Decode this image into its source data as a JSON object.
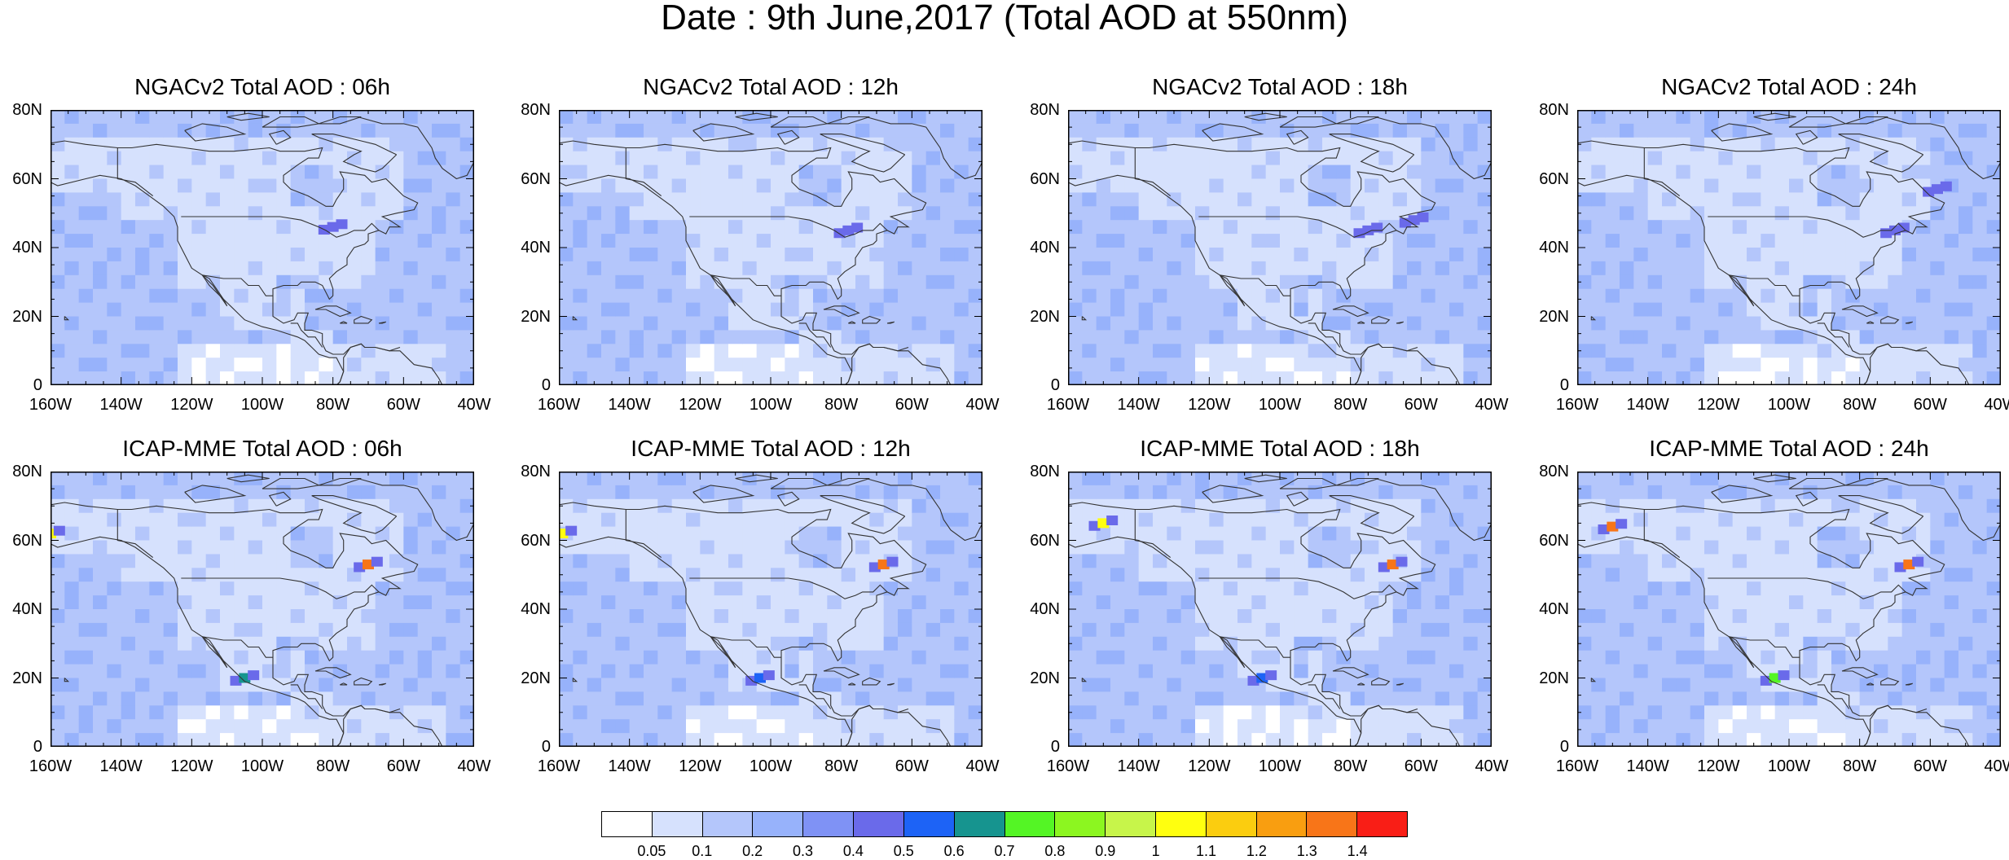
{
  "main_title": "Date : 9th June,2017 (Total AOD at 550nm)",
  "colors": {
    "background": "#ffffff",
    "coastline": "#333333",
    "frame": "#000000"
  },
  "chart_data": [
    {
      "type": "heatmap",
      "title": "NGACv2 Total AOD : 06h",
      "xlim": [
        -160,
        -40
      ],
      "ylim": [
        0,
        80
      ],
      "x_ticks": [
        "160W",
        "140W",
        "120W",
        "100W",
        "80W",
        "60W",
        "40W"
      ],
      "y_ticks": [
        "80N",
        "60N",
        "40N",
        "20N",
        "0"
      ],
      "dominant_range": "0.1-0.3",
      "hotspots": [
        {
          "lon": -80,
          "lat": 46,
          "range": "0.4-0.5"
        }
      ]
    },
    {
      "type": "heatmap",
      "title": "NGACv2 Total AOD : 12h",
      "xlim": [
        -160,
        -40
      ],
      "ylim": [
        0,
        80
      ],
      "x_ticks": [
        "160W",
        "140W",
        "120W",
        "100W",
        "80W",
        "60W",
        "40W"
      ],
      "y_ticks": [
        "80N",
        "60N",
        "40N",
        "20N",
        "0"
      ],
      "dominant_range": "0.1-0.3",
      "hotspots": [
        {
          "lon": -78,
          "lat": 45,
          "range": "0.4-0.5"
        }
      ]
    },
    {
      "type": "heatmap",
      "title": "NGACv2 Total AOD : 18h",
      "xlim": [
        -160,
        -40
      ],
      "ylim": [
        0,
        80
      ],
      "x_ticks": [
        "160W",
        "140W",
        "120W",
        "100W",
        "80W",
        "60W",
        "40W"
      ],
      "y_ticks": [
        "80N",
        "60N",
        "40N",
        "20N",
        "0"
      ],
      "dominant_range": "0.1-0.3",
      "hotspots": [
        {
          "lon": -75,
          "lat": 45,
          "range": "0.4-0.5"
        },
        {
          "lon": -62,
          "lat": 48,
          "range": "0.4-0.5"
        }
      ]
    },
    {
      "type": "heatmap",
      "title": "NGACv2 Total AOD : 24h",
      "xlim": [
        -160,
        -40
      ],
      "ylim": [
        0,
        80
      ],
      "x_ticks": [
        "160W",
        "140W",
        "120W",
        "100W",
        "80W",
        "60W",
        "40W"
      ],
      "y_ticks": [
        "80N",
        "60N",
        "40N",
        "20N",
        "0"
      ],
      "dominant_range": "0.1-0.3",
      "hotspots": [
        {
          "lon": -58,
          "lat": 57,
          "range": "0.4-0.5"
        },
        {
          "lon": -70,
          "lat": 45,
          "range": "0.4-0.5"
        }
      ]
    },
    {
      "type": "heatmap",
      "title": "ICAP-MME Total AOD : 06h",
      "xlim": [
        -160,
        -40
      ],
      "ylim": [
        0,
        80
      ],
      "x_ticks": [
        "160W",
        "140W",
        "120W",
        "100W",
        "80W",
        "60W",
        "40W"
      ],
      "y_ticks": [
        "80N",
        "60N",
        "40N",
        "20N",
        "0"
      ],
      "dominant_range": "0.1-0.3",
      "hotspots": [
        {
          "lon": -105,
          "lat": 20,
          "range": "0.5-0.7"
        },
        {
          "lon": -70,
          "lat": 53,
          "range": "0.8-1.4"
        },
        {
          "lon": -160,
          "lat": 62,
          "range": "0.9-1.1"
        }
      ]
    },
    {
      "type": "heatmap",
      "title": "ICAP-MME Total AOD : 12h",
      "xlim": [
        -160,
        -40
      ],
      "ylim": [
        0,
        80
      ],
      "x_ticks": [
        "160W",
        "140W",
        "120W",
        "100W",
        "80W",
        "60W",
        "40W"
      ],
      "y_ticks": [
        "80N",
        "60N",
        "40N",
        "20N",
        "0"
      ],
      "dominant_range": "0.1-0.3",
      "hotspots": [
        {
          "lon": -103,
          "lat": 20,
          "range": "0.4-0.6"
        },
        {
          "lon": -68,
          "lat": 53,
          "range": "0.8-1.4"
        },
        {
          "lon": -159,
          "lat": 62,
          "range": "0.9-1.1"
        }
      ]
    },
    {
      "type": "heatmap",
      "title": "ICAP-MME Total AOD : 18h",
      "xlim": [
        -160,
        -40
      ],
      "ylim": [
        0,
        80
      ],
      "x_ticks": [
        "160W",
        "140W",
        "120W",
        "100W",
        "80W",
        "60W",
        "40W"
      ],
      "y_ticks": [
        "80N",
        "60N",
        "40N",
        "20N",
        "0"
      ],
      "dominant_range": "0.1-0.3",
      "hotspots": [
        {
          "lon": -105,
          "lat": 20,
          "range": "0.4-0.6"
        },
        {
          "lon": -68,
          "lat": 53,
          "range": "0.8-1.4"
        },
        {
          "lon": -150,
          "lat": 65,
          "range": "0.9-1.1"
        }
      ]
    },
    {
      "type": "heatmap",
      "title": "ICAP-MME Total AOD : 24h",
      "xlim": [
        -160,
        -40
      ],
      "ylim": [
        0,
        80
      ],
      "x_ticks": [
        "160W",
        "140W",
        "120W",
        "100W",
        "80W",
        "60W",
        "40W"
      ],
      "y_ticks": [
        "80N",
        "60N",
        "40N",
        "20N",
        "0"
      ],
      "dominant_range": "0.1-0.3",
      "hotspots": [
        {
          "lon": -104,
          "lat": 20,
          "range": "0.5-0.8"
        },
        {
          "lon": -66,
          "lat": 53,
          "range": "0.8-1.4"
        },
        {
          "lon": -150,
          "lat": 64,
          "range": "0.9-1.4"
        }
      ]
    }
  ],
  "colorbar": {
    "levels": [
      "0.05",
      "0.1",
      "0.2",
      "0.3",
      "0.4",
      "0.5",
      "0.6",
      "0.7",
      "0.8",
      "0.9",
      "1",
      "1.1",
      "1.2",
      "1.3",
      "1.4"
    ],
    "colors": [
      "#ffffff",
      "#d6e1fd",
      "#b4c6fb",
      "#97b2fb",
      "#7f92f5",
      "#6a6aea",
      "#1d63f6",
      "#16948f",
      "#54f525",
      "#8cf620",
      "#c7f54a",
      "#ffff0f",
      "#fbcd0f",
      "#f99e10",
      "#f87518",
      "#f91e16"
    ]
  }
}
